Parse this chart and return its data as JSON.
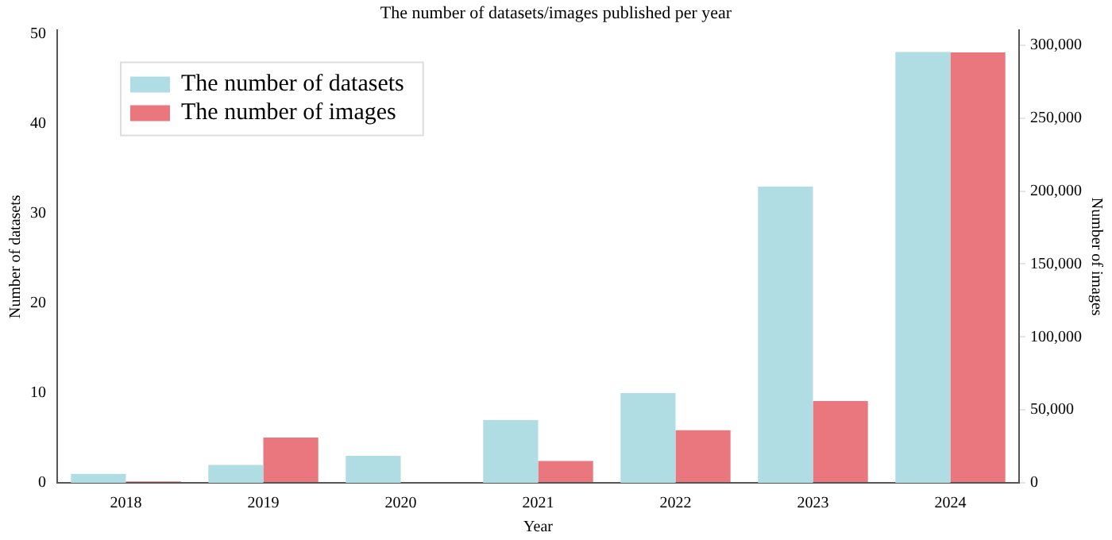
{
  "chart_data": {
    "type": "bar",
    "title": "The number of datasets/images published per year",
    "xlabel": "Year",
    "ylabel": "Number of datasets",
    "y2label": "Number of images",
    "categories": [
      "2018",
      "2019",
      "2020",
      "2021",
      "2022",
      "2023",
      "2024"
    ],
    "series": [
      {
        "name": "The number of datasets",
        "color": "#b0dde4",
        "values": [
          1,
          2,
          3,
          7,
          10,
          33,
          48
        ]
      },
      {
        "name": "The number of images",
        "color": "#e9777d",
        "axis": "y2",
        "values": [
          1000,
          31000,
          0,
          15000,
          36000,
          56000,
          295000
        ]
      }
    ],
    "ylim": [
      0,
      50.4
    ],
    "yticks": [
      0,
      10,
      20,
      30,
      40,
      50
    ],
    "y2lim": [
      0,
      310000
    ],
    "y2ticks": [
      {
        "value": 0,
        "label": "0"
      },
      {
        "value": 50000,
        "label": "50,000"
      },
      {
        "value": 100000,
        "label": "100,000"
      },
      {
        "value": 150000,
        "label": "150,000"
      },
      {
        "value": 200000,
        "label": "200,000"
      },
      {
        "value": 250000,
        "label": "250,000"
      },
      {
        "value": 300000,
        "label": "300,000"
      }
    ],
    "grid": false,
    "legend": "top left"
  }
}
